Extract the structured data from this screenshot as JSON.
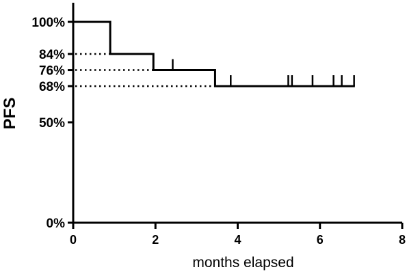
{
  "chart_data": {
    "type": "line",
    "subtype": "kaplan-meier-step",
    "title": "",
    "xlabel": "months elapsed",
    "ylabel": "PFS",
    "xlim": [
      0,
      8
    ],
    "ylim": [
      0,
      100
    ],
    "x_ticks": [
      {
        "value": 0,
        "label": "0"
      },
      {
        "value": 2,
        "label": "2"
      },
      {
        "value": 4,
        "label": "4"
      },
      {
        "value": 6,
        "label": "6"
      },
      {
        "value": 8,
        "label": "8"
      }
    ],
    "y_ticks": [
      {
        "value": 0,
        "label": "0%"
      },
      {
        "value": 50,
        "label": "50%"
      },
      {
        "value": 68,
        "label": "68%"
      },
      {
        "value": 76,
        "label": "76%"
      },
      {
        "value": 84,
        "label": "84%"
      },
      {
        "value": 100,
        "label": "100%"
      }
    ],
    "series": [
      {
        "steps": [
          {
            "x": 0,
            "y": 100
          },
          {
            "x": 0.9,
            "y": 84
          },
          {
            "x": 1.95,
            "y": 76
          },
          {
            "x": 3.45,
            "y": 68
          }
        ],
        "end_x": 6.85,
        "censor_marks": [
          2.42,
          3.83,
          5.23,
          5.32,
          5.82,
          6.33,
          6.53,
          6.83
        ]
      }
    ],
    "reference_lines": [
      {
        "y": 84,
        "x_end": 1.95,
        "style": "dotted"
      },
      {
        "y": 76,
        "x_end": 3.45,
        "style": "dotted"
      },
      {
        "y": 68,
        "x_end": 3.45,
        "style": "dotted"
      }
    ],
    "grid": false,
    "legend": "none",
    "colors": {
      "line": "#000000",
      "axis": "#000000"
    }
  }
}
